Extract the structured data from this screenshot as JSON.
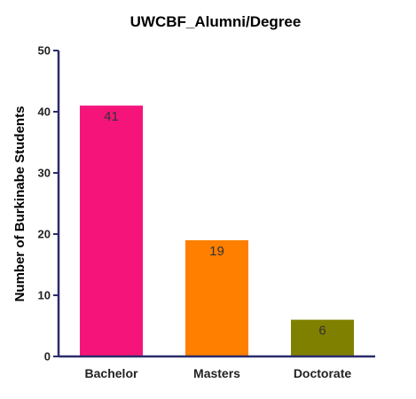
{
  "chart_data": {
    "type": "bar",
    "title": "UWCBF_Alumni/Degree",
    "xlabel": "",
    "ylabel": "Number of Burkinabe Students",
    "categories": [
      "Bachelor",
      "Masters",
      "Doctorate"
    ],
    "values": [
      41,
      19,
      6
    ],
    "data_labels": [
      "41",
      "19",
      "6"
    ],
    "colors": [
      "#f5157a",
      "#ff7f00",
      "#808000"
    ],
    "ylim": [
      0,
      50
    ],
    "yticks": [
      0,
      10,
      20,
      30,
      40,
      50
    ],
    "ytick_labels": [
      "0",
      "10",
      "20",
      "30",
      "40",
      "50"
    ],
    "grid": false,
    "axis_color": "#2b2b6b"
  }
}
